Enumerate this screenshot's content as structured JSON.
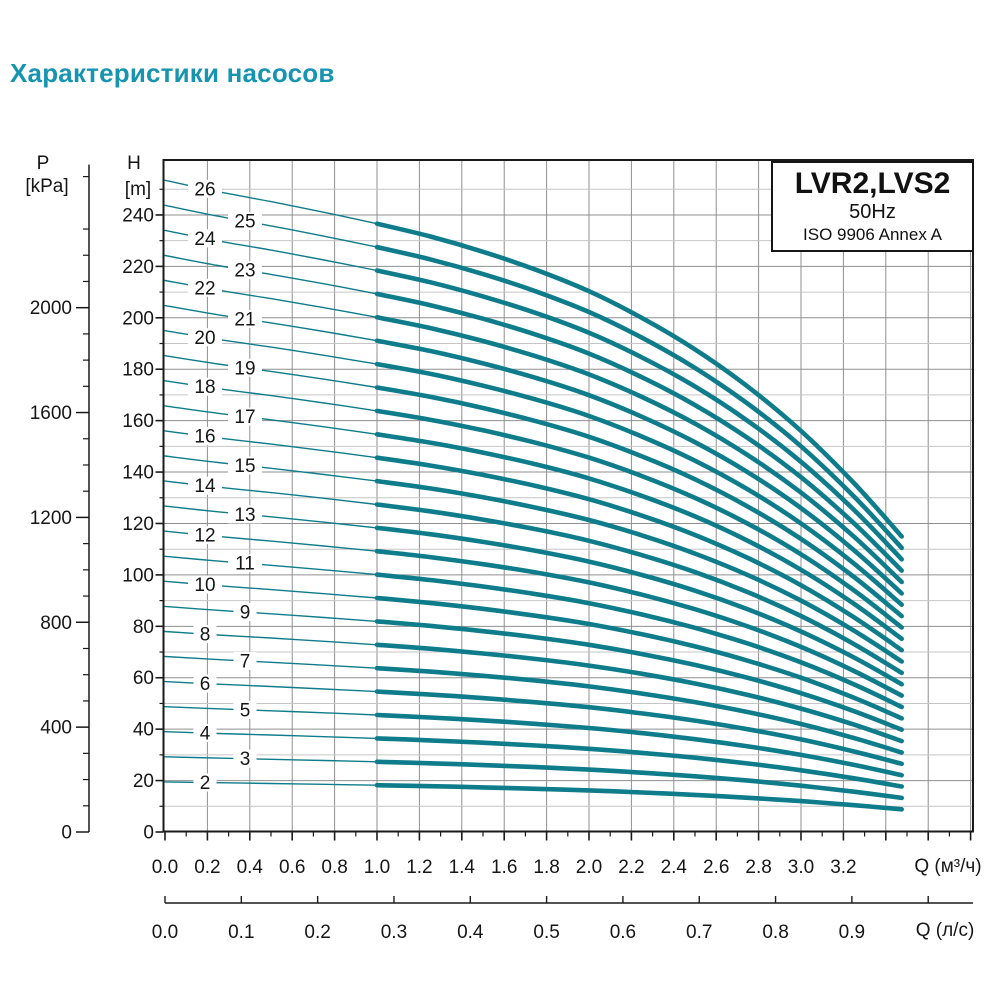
{
  "page_title": "Характеристики насосов",
  "colors": {
    "title_teal": "#1795b0",
    "curve_teal": "#0f7c8b",
    "grid_minor": "#c6c6c6",
    "grid_major": "#8f8f8f",
    "axis_dark": "#1a1a1a",
    "label_dark": "#161616"
  },
  "chart_data": {
    "type": "line",
    "title": "LVR2,LVS2",
    "subtitle": "50Hz",
    "standard": "ISO 9906 Annex A",
    "x_primary": {
      "unit_label": "Q (м³/ч)",
      "tick_labels": [
        "0.0",
        "0.2",
        "0.4",
        "0.6",
        "0.8",
        "1.0",
        "1.2",
        "1.4",
        "1.6",
        "1.8",
        "2.0",
        "2.2",
        "2.4",
        "2.6",
        "2.8",
        "3.0",
        "3.2"
      ],
      "major_step": 0.2,
      "minor_step": 0.1,
      "max": 3.8
    },
    "x_secondary": {
      "unit_label": "Q (л/с)",
      "tick_labels": [
        "0.0",
        "0.1",
        "0.2",
        "0.3",
        "0.4",
        "0.5",
        "0.6",
        "0.7",
        "0.8",
        "0.9"
      ],
      "extra_unlabeled_ticks": [
        1.0
      ],
      "conversion_to_m3h": 3.6
    },
    "y_head": {
      "name": "H",
      "unit": "[m]",
      "tick_labels": [
        0,
        20,
        40,
        60,
        80,
        100,
        120,
        140,
        160,
        180,
        200,
        220,
        240
      ],
      "minor_step": 10,
      "max": 250
    },
    "y_pressure": {
      "name": "P",
      "unit": "[kPa]",
      "tick_labels": [
        0,
        400,
        800,
        1200,
        1600,
        2000
      ],
      "minor_step": 100,
      "max": 2500,
      "kpa_per_m_head": 9.807
    },
    "curves": {
      "stage_numbers": [
        2,
        3,
        4,
        5,
        6,
        7,
        8,
        9,
        10,
        11,
        12,
        13,
        14,
        15,
        16,
        17,
        18,
        19,
        20,
        21,
        22,
        23,
        24,
        25,
        26
      ],
      "q_m3h": [
        0,
        0.25,
        0.5,
        0.75,
        1.0,
        1.25,
        1.5,
        1.75,
        2.0,
        2.25,
        2.5,
        2.75,
        3.0,
        3.25,
        3.475
      ],
      "head_per_stage_m": [
        9.75,
        9.58,
        9.43,
        9.27,
        9.1,
        8.91,
        8.68,
        8.41,
        8.09,
        7.69,
        7.22,
        6.66,
        6.0,
        5.22,
        4.42
      ],
      "thick_segment_start_q": 1.0
    }
  }
}
